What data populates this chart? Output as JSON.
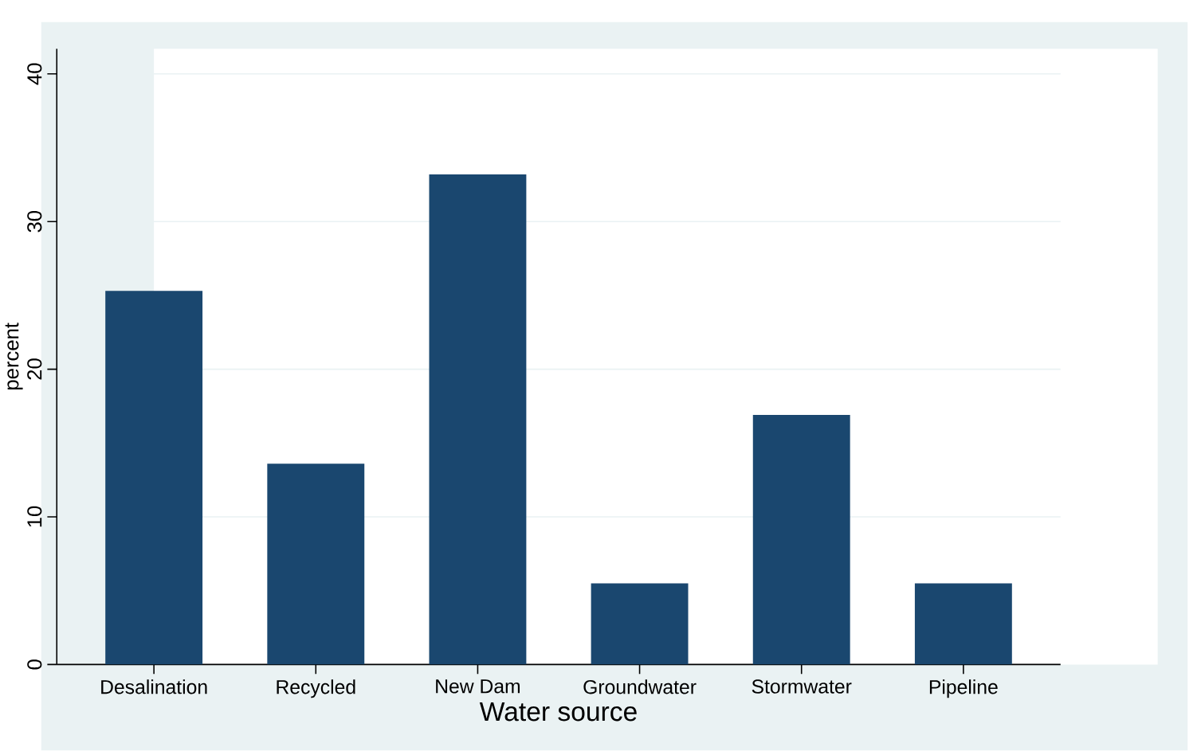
{
  "chart_data": {
    "type": "bar",
    "xlabel": "Water source",
    "ylabel": "percent",
    "categories": [
      "Desalination",
      "Recycled",
      "New Dam",
      "Groundwater",
      "Stormwater",
      "Pipeline"
    ],
    "values": [
      25.3,
      13.6,
      33.2,
      5.5,
      16.9,
      5.5
    ],
    "color": "#1a476f",
    "ylim": [
      0,
      41.7
    ],
    "yticks": [
      0,
      10,
      20,
      30,
      40
    ],
    "grid": "y"
  }
}
